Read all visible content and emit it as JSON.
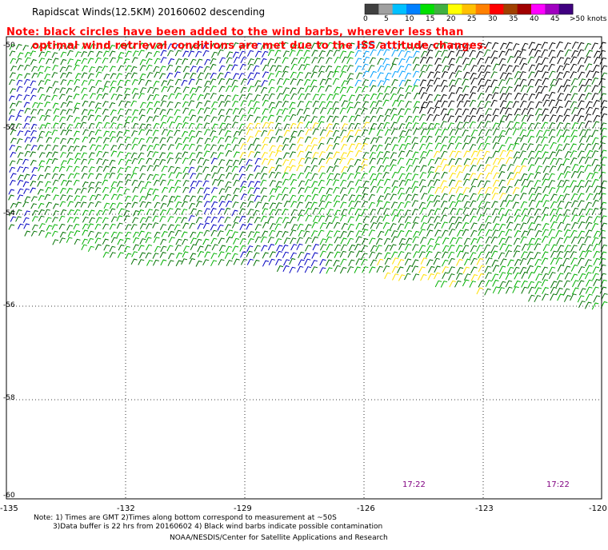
{
  "title": "Rapidscat Winds(12.5KM) 20160602 descending",
  "note": {
    "line1": "Note: black circles have been added to the wind barbs, wherever less than",
    "line2": "optimal wind retrieval conditions are met due to the ISS attitude changes."
  },
  "legend": {
    "labels": [
      "0",
      "5",
      "10",
      "15",
      "20",
      "25",
      "30",
      "35",
      "40",
      "45",
      ">50 knots"
    ],
    "colors": [
      "#404040",
      "#a0a0a0",
      "#00c0ff",
      "#0080ff",
      "#00e000",
      "#40b040",
      "#ffff00",
      "#ffc000",
      "#ff8000",
      "#ff0000",
      "#a04000",
      "#a00000",
      "#ff00ff",
      "#a000c0",
      "#400080"
    ]
  },
  "axes": {
    "lat_labels": [
      "-50",
      "-52",
      "-54",
      "-56",
      "-58",
      "-60"
    ],
    "lon_labels": [
      "-135",
      "-132",
      "-129",
      "-126",
      "-123",
      "-120"
    ]
  },
  "times": [
    "17:22",
    "17:22"
  ],
  "footer": {
    "line1": "Note: 1) Times are GMT 2)Times along bottom correspond to measurement at ~50S",
    "line2": "3)Data buffer is 22 hrs from 20160602 4) Black wind barbs indicate possible contamination",
    "credit": "NOAA/NESDIS/Center for Satellite Applications and Research"
  },
  "colors": {
    "note_text": "#ff0000",
    "time_text": "#800080",
    "barb_green": "#00b000",
    "barb_darkgreen": "#007000",
    "barb_blue": "#0000c0",
    "barb_lightblue": "#00a0ff",
    "barb_yellow": "#ffe000",
    "barb_black": "#000000",
    "barb_orange": "#e08000"
  }
}
